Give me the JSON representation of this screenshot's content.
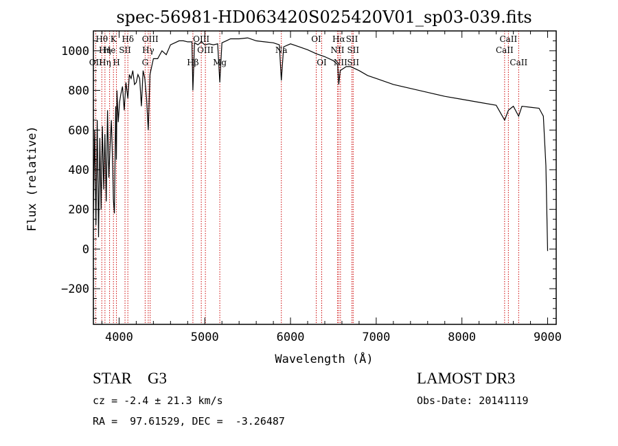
{
  "chart_data": {
    "type": "line",
    "title": "spec-56981-HD063420S025420V01_sp03-039.fits",
    "xlabel": "Wavelength (Å)",
    "ylabel": "Flux (relative)",
    "xlim": [
      3700,
      9100
    ],
    "ylim": [
      -380,
      1100
    ],
    "xticks": [
      4000,
      5000,
      6000,
      7000,
      8000,
      9000
    ],
    "yticks": [
      -200,
      0,
      200,
      400,
      600,
      800,
      1000
    ],
    "grid": false,
    "series": [
      {
        "x": [
          3700,
          3715,
          3730,
          3745,
          3760,
          3775,
          3790,
          3805,
          3820,
          3835,
          3850,
          3865,
          3880,
          3895,
          3910,
          3925,
          3933,
          3945,
          3960,
          3968,
          3975,
          3990,
          4005,
          4020,
          4040,
          4060,
          4080,
          4102,
          4120,
          4140,
          4160,
          4180,
          4200,
          4220,
          4240,
          4260,
          4280,
          4300,
          4320,
          4340,
          4360,
          4380,
          4400,
          4450,
          4500,
          4550,
          4600,
          4650,
          4700,
          4750,
          4800,
          4850,
          4861,
          4880,
          4920,
          4960,
          5000,
          5050,
          5100,
          5150,
          5175,
          5200,
          5250,
          5300,
          5400,
          5500,
          5600,
          5700,
          5800,
          5870,
          5893,
          5920,
          6000,
          6100,
          6200,
          6300,
          6400,
          6500,
          6550,
          6563,
          6580,
          6650,
          6700,
          6800,
          6900,
          7000,
          7200,
          7400,
          7600,
          7800,
          8000,
          8200,
          8400,
          8498,
          8542,
          8600,
          8662,
          8700,
          8800,
          8900,
          8950,
          8980,
          9000
        ],
        "y": [
          180,
          600,
          120,
          650,
          60,
          560,
          200,
          620,
          300,
          580,
          240,
          700,
          360,
          520,
          650,
          420,
          250,
          180,
          720,
          450,
          800,
          640,
          740,
          780,
          820,
          700,
          840,
          760,
          880,
          860,
          900,
          830,
          840,
          880,
          860,
          720,
          900,
          860,
          760,
          600,
          880,
          920,
          960,
          960,
          1000,
          980,
          1030,
          1040,
          1050,
          1050,
          1045,
          1045,
          800,
          1040,
          1030,
          1045,
          1030,
          1035,
          1030,
          1035,
          840,
          1040,
          1050,
          1060,
          1060,
          1065,
          1050,
          1045,
          1040,
          1030,
          850,
          1020,
          1035,
          1020,
          1005,
          985,
          970,
          950,
          930,
          830,
          900,
          920,
          920,
          900,
          875,
          860,
          830,
          810,
          790,
          770,
          755,
          740,
          725,
          650,
          700,
          720,
          670,
          720,
          715,
          710,
          670,
          420,
          -10
        ]
      }
    ],
    "spectral_lines": [
      {
        "label": "Hθ",
        "x": 3798,
        "row": 1
      },
      {
        "label": "OII",
        "x": 3727,
        "row": 3
      },
      {
        "label": "Hη",
        "x": 3835,
        "row": 2
      },
      {
        "label": "Hη",
        "x": 3835,
        "row": 3
      },
      {
        "label": "K",
        "x": 3934,
        "row": 1
      },
      {
        "label": "H",
        "x": 3969,
        "row": 3
      },
      {
        "label": "He",
        "x": 3889,
        "row": 2
      },
      {
        "label": "SII",
        "x": 4069,
        "row": 2
      },
      {
        "label": "Hδ",
        "x": 4102,
        "row": 1
      },
      {
        "label": "OIII",
        "x": 4363,
        "row": 1
      },
      {
        "label": "Hγ",
        "x": 4340,
        "row": 2
      },
      {
        "label": "G",
        "x": 4304,
        "row": 3
      },
      {
        "label": "Hβ",
        "x": 4861,
        "row": 3
      },
      {
        "label": "OIII",
        "x": 4959,
        "row": 1
      },
      {
        "label": "OIII",
        "x": 5007,
        "row": 2
      },
      {
        "label": "Mg",
        "x": 5175,
        "row": 3
      },
      {
        "label": "Na",
        "x": 5893,
        "row": 2
      },
      {
        "label": "OI",
        "x": 6300,
        "row": 1
      },
      {
        "label": "OI",
        "x": 6364,
        "row": 3
      },
      {
        "label": "Hα",
        "x": 6563,
        "row": 1
      },
      {
        "label": "NII",
        "x": 6548,
        "row": 2
      },
      {
        "label": "NII",
        "x": 6583,
        "row": 3
      },
      {
        "label": "SII",
        "x": 6717,
        "row": 1
      },
      {
        "label": "SII",
        "x": 6731,
        "row": 2
      },
      {
        "label": "SII",
        "x": 6731,
        "row": 3
      },
      {
        "label": "CaII",
        "x": 8542,
        "row": 1
      },
      {
        "label": "CaII",
        "x": 8498,
        "row": 2
      },
      {
        "label": "CaII",
        "x": 8662,
        "row": 3
      }
    ]
  },
  "footer": {
    "object_class": "STAR    G3",
    "survey": "LAMOST DR3",
    "redshift": "cz = -2.4 ± 21.3 km/s",
    "obs_date": "Obs-Date: 20141119",
    "coords": "RA =  97.61529, DEC =  -3.26487"
  },
  "colors": {
    "spectrum": "#000000",
    "line_markers": "#cc0000",
    "axes": "#000000"
  }
}
